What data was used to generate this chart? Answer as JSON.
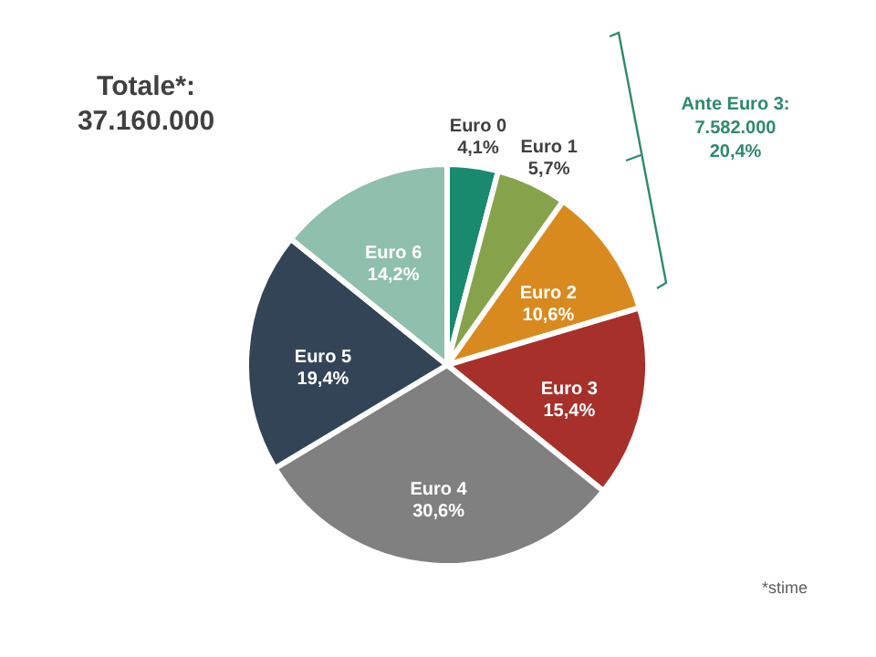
{
  "chart_data": {
    "type": "pie",
    "title": "Totale*: 37.160.000",
    "categories": [
      "Euro 0",
      "Euro 1",
      "Euro 2",
      "Euro 3",
      "Euro 4",
      "Euro 5",
      "Euro 6"
    ],
    "values": [
      4.1,
      5.7,
      10.6,
      15.4,
      30.6,
      19.4,
      14.2
    ],
    "value_labels": [
      "4,1%",
      "5,7%",
      "10,6%",
      "15,4%",
      "30,6%",
      "19,4%",
      "14,2%"
    ],
    "colors": [
      "#1a8a6e",
      "#86a34b",
      "#d98a1f",
      "#a8302a",
      "#808080",
      "#334456",
      "#8fbfad"
    ],
    "annotations": [
      "Ante Euro 3: 7.582.000 20,4%",
      "*stime"
    ]
  }
}
